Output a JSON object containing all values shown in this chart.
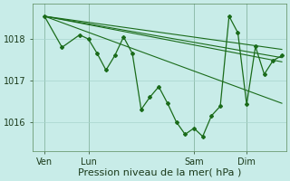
{
  "background_color": "#c8ece8",
  "grid_color": "#a8d4ce",
  "line_color": "#1a6b1a",
  "xlabel": "Pression niveau de la mer( hPa )",
  "xlabel_fontsize": 8,
  "yticks": [
    1016,
    1017,
    1018
  ],
  "ylim": [
    1015.3,
    1018.85
  ],
  "xlim": [
    -0.3,
    28.5
  ],
  "xtick_labels": [
    "Ven",
    "Lun",
    "Sam",
    "Dim"
  ],
  "xtick_positions": [
    1,
    6,
    18,
    24
  ],
  "vline_positions": [
    1,
    6,
    18,
    24
  ],
  "trend_lines": [
    {
      "x": [
        1,
        28
      ],
      "y": [
        1018.55,
        1017.55
      ]
    },
    {
      "x": [
        1,
        28
      ],
      "y": [
        1018.55,
        1017.45
      ]
    },
    {
      "x": [
        1,
        28
      ],
      "y": [
        1018.55,
        1017.75
      ]
    },
    {
      "x": [
        1,
        28
      ],
      "y": [
        1018.55,
        1016.45
      ]
    }
  ],
  "main_line_x": [
    1,
    3,
    5,
    6,
    7,
    8,
    9,
    10,
    11,
    12,
    13,
    14,
    15,
    16,
    17,
    18,
    19,
    20,
    21,
    22,
    23,
    24,
    25,
    26,
    27,
    28
  ],
  "main_line_y": [
    1018.55,
    1017.8,
    1018.1,
    1018.0,
    1017.65,
    1017.25,
    1017.6,
    1018.05,
    1017.65,
    1016.3,
    1016.6,
    1016.85,
    1016.45,
    1016.0,
    1015.7,
    1015.85,
    1015.65,
    1016.15,
    1016.38,
    1018.55,
    1018.15,
    1016.42,
    1017.82,
    1017.15,
    1017.48,
    1017.6
  ]
}
